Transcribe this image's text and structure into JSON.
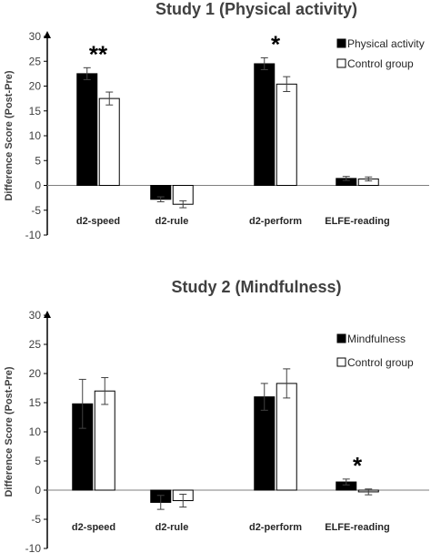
{
  "chart_data": [
    {
      "type": "bar",
      "title": "Study 1 (Physical activity)",
      "ylabel": "Difference Score (Post-Pre)",
      "ylim": [
        -10,
        30
      ],
      "yticks": [
        -10,
        -5,
        0,
        5,
        10,
        15,
        20,
        25,
        30
      ],
      "categories": [
        "d2-speed",
        "d2-rule",
        "d2-perform",
        "ELFE-reading"
      ],
      "series": [
        {
          "name": "Physical activity",
          "color": "#000000",
          "values": [
            22.5,
            -2.8,
            24.5,
            1.4
          ],
          "errors": [
            1.2,
            0.5,
            1.2,
            0.4
          ]
        },
        {
          "name": "Control group",
          "color": "#ffffff",
          "values": [
            17.5,
            -3.8,
            20.4,
            1.3
          ],
          "errors": [
            1.3,
            0.7,
            1.5,
            0.4
          ]
        }
      ],
      "annotations": [
        {
          "category": "d2-speed",
          "text": "**"
        },
        {
          "category": "d2-perform",
          "text": "*"
        }
      ],
      "legend": "top-right",
      "grid": false
    },
    {
      "type": "bar",
      "title": "Study 2 (Mindfulness)",
      "ylabel": "Difference Score (Post-Pre)",
      "ylim": [
        -10,
        30
      ],
      "yticks": [
        -10,
        -5,
        0,
        5,
        10,
        15,
        20,
        25,
        30
      ],
      "categories": [
        "d2-speed",
        "d2-rule",
        "d2-perform",
        "ELFE-reading"
      ],
      "series": [
        {
          "name": "Mindfulness",
          "color": "#000000",
          "values": [
            14.8,
            -2.1,
            16.0,
            1.4
          ],
          "errors": [
            4.2,
            1.2,
            2.3,
            0.5
          ]
        },
        {
          "name": "Control group",
          "color": "#ffffff",
          "values": [
            17.0,
            -1.8,
            18.3,
            -0.3
          ],
          "errors": [
            2.3,
            1.1,
            2.5,
            0.5
          ]
        }
      ],
      "annotations": [
        {
          "category": "ELFE-reading",
          "text": "*"
        }
      ],
      "legend": "top-right",
      "grid": false
    }
  ]
}
